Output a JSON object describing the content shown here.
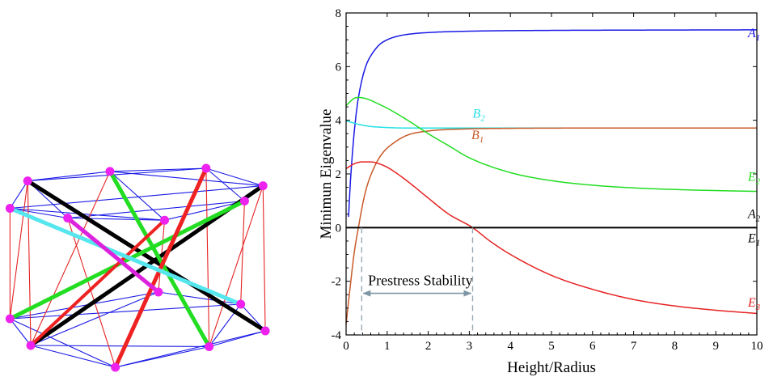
{
  "chart_data": {
    "type": "line",
    "xlabel": "Height/Radius",
    "ylabel": "Minimun Eigenvalue",
    "xlim": [
      0,
      10
    ],
    "ylim": [
      -4,
      8
    ],
    "xticks": [
      "0",
      "1",
      "2",
      "3",
      "4",
      "5",
      "6",
      "7",
      "8",
      "9",
      "10"
    ],
    "yticks": [
      "-4",
      "-2",
      "0",
      "2",
      "4",
      "6",
      "8"
    ],
    "grid": false,
    "annotation": {
      "text": "Prestress Stability",
      "x_range": [
        0.38,
        3.08
      ],
      "arrow_y": -2.45,
      "dashed_to_y": -4
    },
    "shaded_region": {
      "series": "E_3",
      "x_range": [
        0.38,
        3.08
      ],
      "color": "#cdd8e0"
    },
    "series": [
      {
        "id": "A1",
        "name": "A",
        "sub": "1",
        "color": "#1a1ae6",
        "x": [
          0.06,
          0.1,
          0.15,
          0.2,
          0.25,
          0.3,
          0.4,
          0.5,
          0.6,
          0.8,
          1.0,
          1.3,
          1.6,
          2.0,
          3.0,
          5.0,
          7.0,
          10.0
        ],
        "y": [
          0.4,
          1.6,
          2.7,
          3.6,
          4.3,
          4.85,
          5.6,
          6.1,
          6.4,
          6.8,
          7.0,
          7.15,
          7.22,
          7.27,
          7.32,
          7.35,
          7.36,
          7.37
        ],
        "label_at": [
          9.78,
          7.1
        ]
      },
      {
        "id": "B2",
        "name": "B",
        "sub": "2",
        "color": "#22e0e6",
        "x": [
          0.0,
          0.3,
          0.6,
          1.0,
          1.5,
          2.0,
          3.0,
          5.0,
          7.0,
          10.0
        ],
        "y": [
          3.98,
          3.85,
          3.77,
          3.73,
          3.71,
          3.71,
          3.71,
          3.71,
          3.71,
          3.71
        ],
        "label_at": [
          3.08,
          4.1
        ]
      },
      {
        "id": "B1",
        "name": "B",
        "sub": "1",
        "color": "#c85a28",
        "x": [
          0.0,
          0.1,
          0.2,
          0.3,
          0.4,
          0.5,
          0.7,
          0.9,
          1.2,
          1.5,
          2.0,
          3.0,
          4.0,
          6.0,
          10.0
        ],
        "y": [
          -3.6,
          -2.2,
          -0.9,
          0.0,
          0.85,
          1.5,
          2.3,
          2.8,
          3.2,
          3.45,
          3.6,
          3.68,
          3.7,
          3.71,
          3.71
        ],
        "label_at": [
          3.05,
          3.3
        ]
      },
      {
        "id": "E2",
        "name": "E",
        "sub": "2",
        "color": "#22dd22",
        "x": [
          0.0,
          0.2,
          0.3,
          0.5,
          0.8,
          1.0,
          1.5,
          2.0,
          2.5,
          3.0,
          4.0,
          5.0,
          6.0,
          7.0,
          8.0,
          9.0,
          10.0
        ],
        "y": [
          4.55,
          4.82,
          4.85,
          4.8,
          4.6,
          4.45,
          4.0,
          3.5,
          3.05,
          2.6,
          2.05,
          1.75,
          1.58,
          1.48,
          1.42,
          1.38,
          1.35
        ],
        "label_at": [
          9.78,
          1.75
        ]
      },
      {
        "id": "E3",
        "name": "E",
        "sub": "3",
        "color": "#e62222",
        "x": [
          0.0,
          0.2,
          0.4,
          0.6,
          0.8,
          1.0,
          1.3,
          1.6,
          2.0,
          2.5,
          3.08,
          3.5,
          4.0,
          5.0,
          6.0,
          7.0,
          8.0,
          9.0,
          10.0
        ],
        "y": [
          2.2,
          2.38,
          2.45,
          2.45,
          2.38,
          2.25,
          1.95,
          1.6,
          1.1,
          0.5,
          0.0,
          -0.5,
          -1.0,
          -1.78,
          -2.3,
          -2.68,
          -2.92,
          -3.08,
          -3.2
        ],
        "label_at": [
          9.78,
          -2.95
        ]
      },
      {
        "id": "A2E1",
        "name": "A",
        "sub": "2",
        "color": "#000000",
        "x": [
          0.0,
          10.0
        ],
        "y": [
          0.0,
          0.0
        ],
        "label_at": [
          9.78,
          0.35
        ]
      }
    ],
    "extra_labels": [
      {
        "name": "E",
        "sub": "1",
        "color": "#000000",
        "at": [
          9.78,
          -0.55
        ]
      }
    ]
  },
  "tensegrity": {
    "nodes": [
      {
        "name": "n-top-a",
        "fx": 0.143,
        "fy": 0.023
      },
      {
        "name": "n-top-b",
        "fx": 0.268,
        "fy": 0.01
      },
      {
        "name": "n-top-c",
        "fx": 0.036,
        "fy": 0.062
      },
      {
        "name": "n-top-d",
        "fx": 0.342,
        "fy": 0.082
      },
      {
        "name": "n-top-e",
        "fx": 0.013,
        "fy": 0.175
      },
      {
        "name": "n-top-f",
        "fx": 0.318,
        "fy": 0.145
      },
      {
        "name": "n-top-g",
        "fx": 0.088,
        "fy": 0.215
      },
      {
        "name": "n-top-h",
        "fx": 0.214,
        "fy": 0.224
      },
      {
        "name": "n-bot-a",
        "fx": 0.206,
        "fy": 0.52
      },
      {
        "name": "n-bot-b",
        "fx": 0.313,
        "fy": 0.57
      },
      {
        "name": "n-bot-c",
        "fx": 0.013,
        "fy": 0.63
      },
      {
        "name": "n-bot-d",
        "fx": 0.345,
        "fy": 0.68
      },
      {
        "name": "n-bot-e",
        "fx": 0.04,
        "fy": 0.74
      },
      {
        "name": "n-bot-f",
        "fx": 0.272,
        "fy": 0.745
      },
      {
        "name": "n-bot-g",
        "fx": 0.15,
        "fy": 0.83
      }
    ],
    "colors": {
      "node": "#ee22ee",
      "cable_blue": "#1a1ae6",
      "cable_red": "#e62222",
      "bar_black": "#000000",
      "bar_green": "#22dd22",
      "bar_red": "#ee2222",
      "bar_cyan": "#55e6ee",
      "bar_magenta": "#dd22dd"
    }
  }
}
